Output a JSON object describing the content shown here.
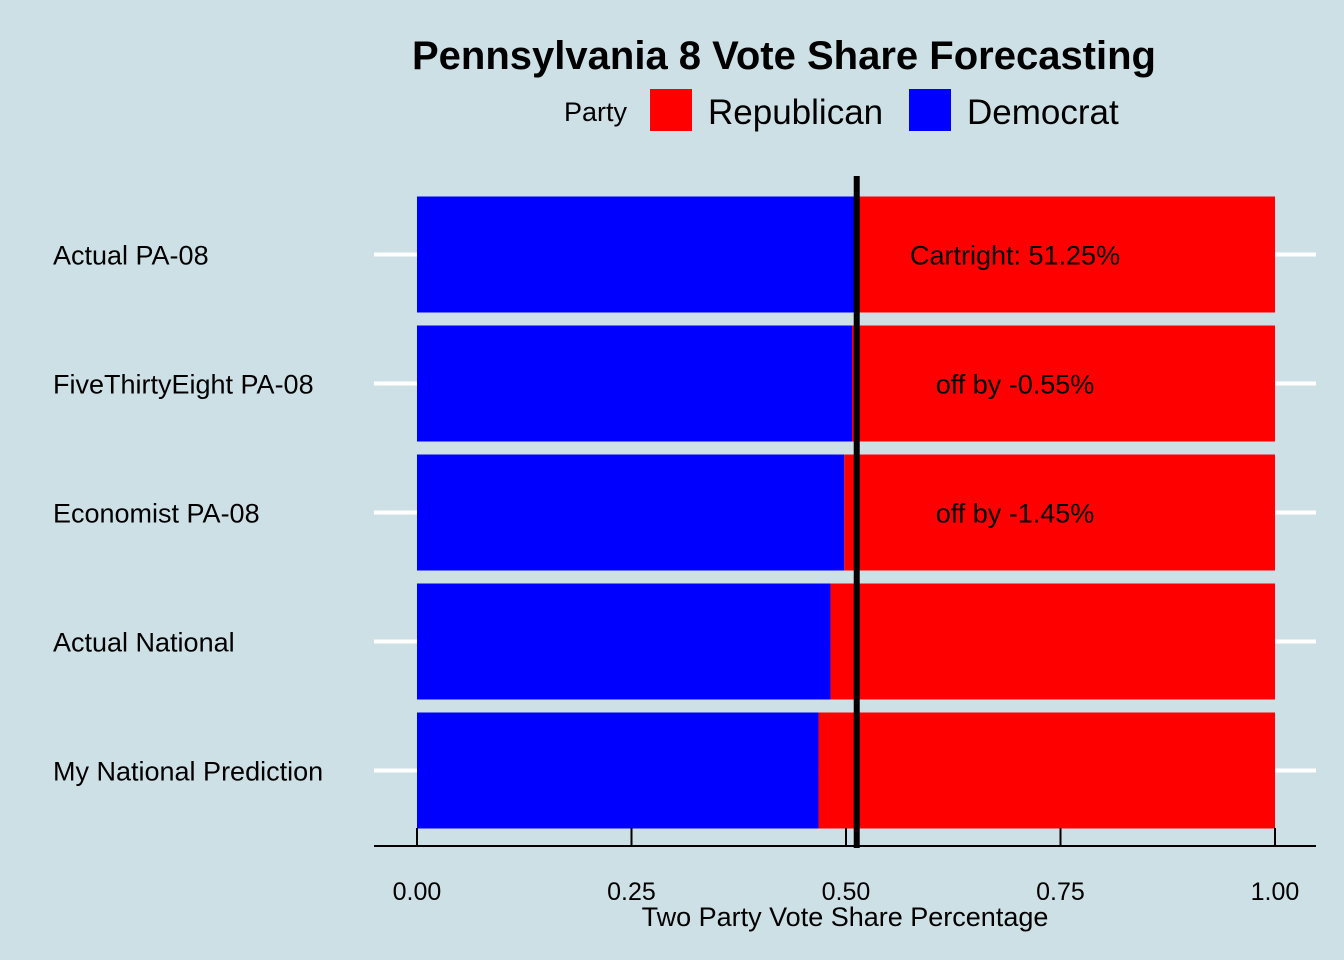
{
  "chart_data": {
    "type": "bar",
    "orientation": "horizontal",
    "stacked": true,
    "title": "Pennsylvania 8 Vote Share Forecasting",
    "legend": {
      "title": "Party",
      "position": "top",
      "items": [
        {
          "label": "Republican",
          "color": "#ff0000"
        },
        {
          "label": "Democrat",
          "color": "#0000ff"
        }
      ]
    },
    "categories": [
      "Actual PA-08",
      "FiveThirtyEight PA-08",
      "Economist PA-08",
      "Actual National",
      "My National Prediction"
    ],
    "series": [
      {
        "name": "Democrat",
        "color": "#0000ff",
        "values": [
          0.5125,
          0.507,
          0.498,
          0.482,
          0.468
        ]
      },
      {
        "name": "Republican",
        "color": "#ff0000",
        "values": [
          0.4875,
          0.493,
          0.502,
          0.518,
          0.532
        ]
      }
    ],
    "reference_line": {
      "x": 0.5125,
      "color": "#000000"
    },
    "annotations": [
      {
        "category": "Actual PA-08",
        "x": 0.697,
        "text": "Cartright: 51.25%"
      },
      {
        "category": "FiveThirtyEight PA-08",
        "x": 0.697,
        "text": "off by -0.55%"
      },
      {
        "category": "Economist PA-08",
        "x": 0.697,
        "text": "off by -1.45%"
      }
    ],
    "xlabel": "Two Party Vote Share Percentage",
    "ylabel": "",
    "xlim": [
      0,
      1
    ],
    "xticks": [
      0,
      0.25,
      0.5,
      0.75,
      1
    ],
    "xtick_labels": [
      "0.00",
      "0.25",
      "0.50",
      "0.75",
      "1.00"
    ],
    "grid": {
      "horizontal": true,
      "vertical": false,
      "color": "#ffffff"
    },
    "background": "#cde0e6"
  }
}
